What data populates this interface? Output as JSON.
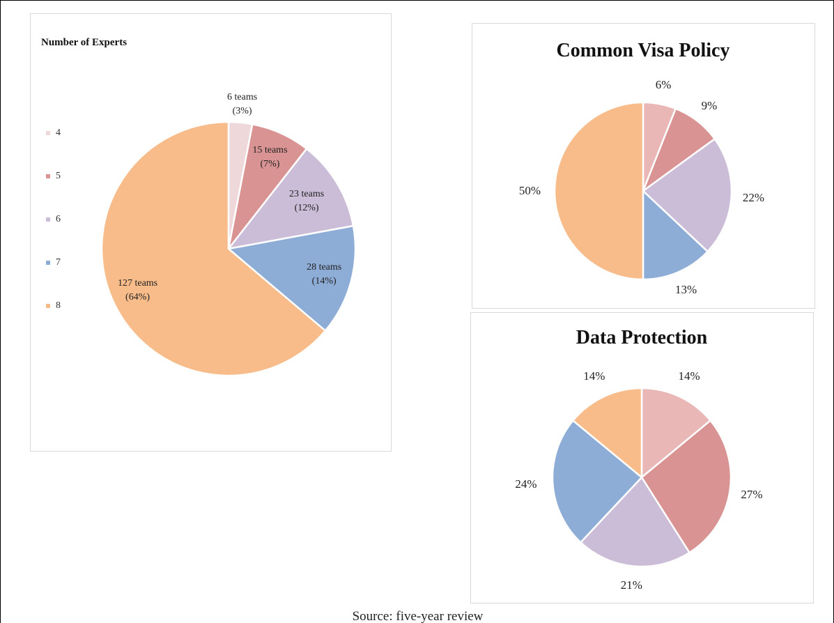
{
  "chart_data": [
    {
      "type": "pie",
      "title": "Number of Experts",
      "categories": [
        "4",
        "5",
        "6",
        "7",
        "8"
      ],
      "values": [
        6,
        15,
        23,
        28,
        127
      ],
      "value_labels": [
        "6 teams\n(3%)",
        "15 teams\n(7%)",
        "23 teams\n(12%)",
        "28 teams\n(14%)",
        "127 teams\n(64%)"
      ],
      "colors": [
        "#efd8d9",
        "#d99392",
        "#cbbdd8",
        "#8eadd6",
        "#f7bc8a"
      ],
      "legend": "left"
    },
    {
      "type": "pie",
      "title": "Common Visa Policy",
      "values": [
        6,
        9,
        22,
        13,
        50
      ],
      "value_labels": [
        "6%",
        "9%",
        "22%",
        "13%",
        "50%"
      ],
      "colors": [
        "#e8b7b6",
        "#d99392",
        "#cbbdd8",
        "#8eadd6",
        "#f7bc8a"
      ]
    },
    {
      "type": "pie",
      "title": "Data Protection",
      "values": [
        14,
        27,
        21,
        24,
        14
      ],
      "value_labels": [
        "14%",
        "27%",
        "21%",
        "24%",
        "14%"
      ],
      "colors": [
        "#e8b7b6",
        "#d99392",
        "#cbbdd8",
        "#8eadd6",
        "#f7bc8a"
      ]
    }
  ],
  "caption": "Source: five-year review"
}
